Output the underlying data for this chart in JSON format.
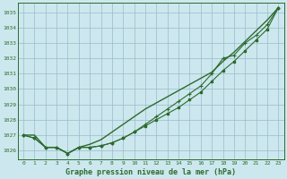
{
  "title": "Graphe pression niveau de la mer (hPa)",
  "bg_color": "#cce8ee",
  "grid_color": "#99bbcc",
  "line_color": "#2d6a2d",
  "xlim": [
    -0.5,
    23.5
  ],
  "ylim": [
    1025.4,
    1035.6
  ],
  "yticks": [
    1026,
    1027,
    1028,
    1029,
    1030,
    1031,
    1032,
    1033,
    1034,
    1035
  ],
  "xticks": [
    0,
    1,
    2,
    3,
    4,
    5,
    6,
    7,
    8,
    9,
    10,
    11,
    12,
    13,
    14,
    15,
    16,
    17,
    18,
    19,
    20,
    21,
    22,
    23
  ],
  "line_straight": [
    1027.0,
    1027.0,
    1026.2,
    1026.2,
    1025.8,
    1026.2,
    1026.4,
    1026.7,
    1027.2,
    1027.7,
    1028.2,
    1028.7,
    1029.1,
    1029.5,
    1029.9,
    1030.3,
    1030.7,
    1031.1,
    1031.8,
    1032.4,
    1033.1,
    1033.8,
    1034.5,
    1035.3
  ],
  "line_square": [
    1027.0,
    1026.8,
    1026.2,
    1026.2,
    1025.8,
    1026.2,
    1026.2,
    1026.3,
    1026.5,
    1026.8,
    1027.2,
    1027.6,
    1028.0,
    1028.4,
    1028.8,
    1029.3,
    1029.8,
    1030.5,
    1031.2,
    1031.8,
    1032.5,
    1033.2,
    1033.9,
    1035.3
  ],
  "line_plus": [
    1027.0,
    1026.8,
    1026.2,
    1026.2,
    1025.8,
    1026.2,
    1026.2,
    1026.3,
    1026.5,
    1026.8,
    1027.2,
    1027.7,
    1028.2,
    1028.7,
    1029.2,
    1029.7,
    1030.2,
    1031.0,
    1032.0,
    1032.2,
    1033.0,
    1033.5,
    1034.2,
    1035.3
  ]
}
